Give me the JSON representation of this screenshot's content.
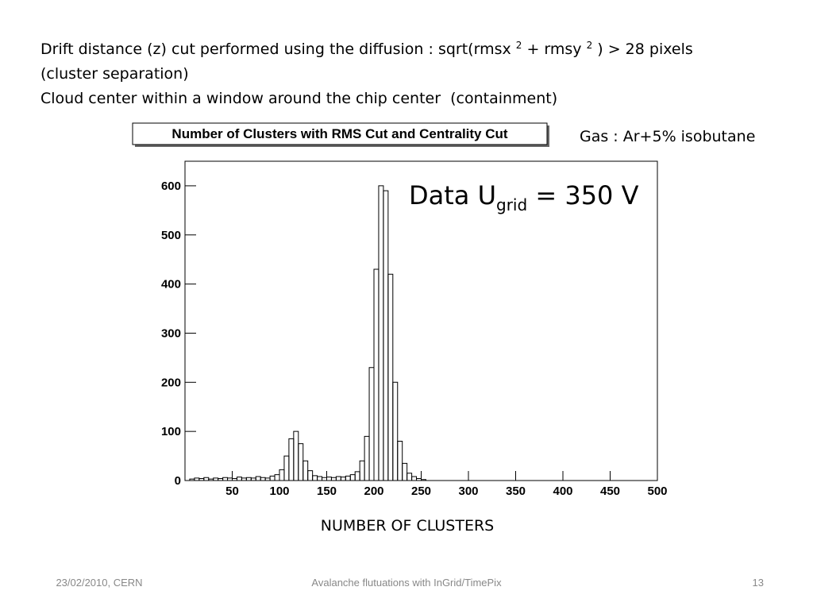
{
  "header": {
    "line1": [
      "Drift distance (z) cut performed using the diffusion : sqrt(rmsx ",
      "2",
      " + rmsy ",
      "2",
      " ) > 28 pixels"
    ],
    "line2": "(cluster separation)",
    "line3": "Cloud center within a window around the chip center  (containment)"
  },
  "gas_note": "Gas : Ar+5% isobutane",
  "footer": {
    "date": "23/02/2010, CERN",
    "title": "Avalanche flutuations with InGrid/TimePix",
    "page": "13"
  },
  "chart_data": {
    "type": "histogram",
    "title": "Number of Clusters with RMS Cut and Centrality Cut",
    "annotation": [
      "Data U",
      "grid",
      " = 350 V"
    ],
    "x_label": "NUMBER OF CLUSTERS",
    "bins": [
      0,
      5,
      10,
      15,
      20,
      25,
      30,
      35,
      40,
      45,
      50,
      55,
      60,
      65,
      70,
      75,
      80,
      85,
      90,
      95,
      100,
      105,
      110,
      115,
      120,
      125,
      130,
      135,
      140,
      145,
      150,
      155,
      160,
      165,
      170,
      175,
      180,
      185,
      190,
      195,
      200,
      205,
      210,
      215,
      220,
      225,
      230,
      235,
      240,
      245,
      250,
      255,
      260,
      265,
      270,
      275,
      280,
      285,
      290,
      295,
      300,
      305,
      310,
      315,
      320,
      325,
      330,
      335,
      340,
      345,
      350,
      355,
      360,
      365,
      370,
      375,
      380,
      385,
      390,
      395,
      400,
      405,
      410,
      415,
      420,
      425,
      430,
      435,
      440,
      445,
      450,
      455,
      460,
      465,
      470,
      475,
      480,
      485,
      490,
      495,
      500
    ],
    "values": [
      0,
      3,
      5,
      4,
      6,
      3,
      5,
      4,
      6,
      5,
      4,
      7,
      5,
      6,
      5,
      8,
      6,
      5,
      9,
      12,
      22,
      50,
      85,
      100,
      75,
      40,
      20,
      10,
      8,
      6,
      7,
      6,
      8,
      7,
      9,
      12,
      18,
      40,
      90,
      230,
      430,
      600,
      590,
      420,
      200,
      80,
      35,
      15,
      8,
      4,
      2,
      0,
      0,
      0,
      0,
      0,
      0,
      0,
      0,
      0,
      0,
      0,
      0,
      0,
      0,
      0,
      0,
      0,
      0,
      0,
      0,
      0,
      0,
      0,
      0,
      0,
      0,
      0,
      0,
      0,
      0,
      0,
      0,
      0,
      0,
      0,
      0,
      0,
      0,
      0,
      0,
      0,
      0,
      0,
      0,
      0,
      0,
      0,
      0,
      0
    ],
    "color": "#000000",
    "xlim": [
      0,
      500
    ],
    "xticks": [
      50,
      100,
      150,
      200,
      250,
      300,
      350,
      400,
      450,
      500
    ],
    "ylim": [
      0,
      650
    ],
    "yticks": [
      0,
      100,
      200,
      300,
      400,
      500,
      600
    ]
  }
}
